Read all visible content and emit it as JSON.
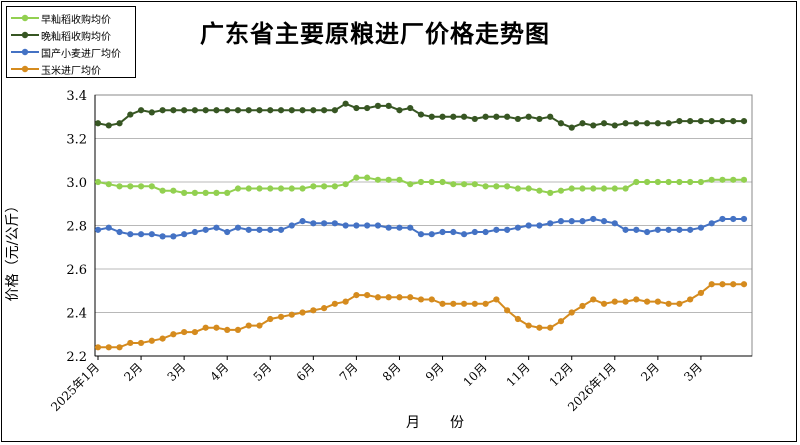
{
  "chart_data": {
    "type": "line",
    "title": "广东省主要原粮进厂价格走势图",
    "xlabel": "月　份",
    "ylabel": "价格（元/公斤）",
    "ylim": [
      2.2,
      3.4
    ],
    "yticks": [
      "2.2",
      "2.4",
      "2.6",
      "2.8",
      "3.0",
      "3.2",
      "3.4"
    ],
    "grid": true,
    "legend_position": "top-left",
    "x_tick_labels": [
      "2025年1月",
      "2月",
      "3月",
      "4月",
      "5月",
      "6月",
      "7月",
      "8月",
      "9月",
      "10月",
      "11月",
      "12月",
      "2026年1月",
      "2月",
      "3月"
    ],
    "points_per_month": 4,
    "series": [
      {
        "name": "早籼稻收购均价",
        "color": "#92D050",
        "values": [
          3.0,
          2.99,
          2.98,
          2.98,
          2.98,
          2.98,
          2.96,
          2.96,
          2.95,
          2.95,
          2.95,
          2.95,
          2.95,
          2.97,
          2.97,
          2.97,
          2.97,
          2.97,
          2.97,
          2.97,
          2.98,
          2.98,
          2.98,
          2.99,
          3.02,
          3.02,
          3.01,
          3.01,
          3.01,
          2.99,
          3.0,
          3.0,
          3.0,
          2.99,
          2.99,
          2.99,
          2.98,
          2.98,
          2.98,
          2.97,
          2.97,
          2.96,
          2.95,
          2.96,
          2.97,
          2.97,
          2.97,
          2.97,
          2.97,
          2.97,
          3.0,
          3.0,
          3.0,
          3.0,
          3.0,
          3.0,
          3.0,
          3.01,
          3.01,
          3.01,
          3.01
        ]
      },
      {
        "name": "晚籼稻收购均价",
        "color": "#375623",
        "values": [
          3.27,
          3.26,
          3.27,
          3.31,
          3.33,
          3.32,
          3.33,
          3.33,
          3.33,
          3.33,
          3.33,
          3.33,
          3.33,
          3.33,
          3.33,
          3.33,
          3.33,
          3.33,
          3.33,
          3.33,
          3.33,
          3.33,
          3.33,
          3.36,
          3.34,
          3.34,
          3.35,
          3.35,
          3.33,
          3.34,
          3.31,
          3.3,
          3.3,
          3.3,
          3.3,
          3.29,
          3.3,
          3.3,
          3.3,
          3.29,
          3.3,
          3.29,
          3.3,
          3.27,
          3.25,
          3.27,
          3.26,
          3.27,
          3.26,
          3.27,
          3.27,
          3.27,
          3.27,
          3.27,
          3.28,
          3.28,
          3.28,
          3.28,
          3.28,
          3.28,
          3.28
        ]
      },
      {
        "name": "国产小麦进厂均价",
        "color": "#4472C4",
        "values": [
          2.78,
          2.79,
          2.77,
          2.76,
          2.76,
          2.76,
          2.75,
          2.75,
          2.76,
          2.77,
          2.78,
          2.79,
          2.77,
          2.79,
          2.78,
          2.78,
          2.78,
          2.78,
          2.8,
          2.82,
          2.81,
          2.81,
          2.81,
          2.8,
          2.8,
          2.8,
          2.8,
          2.79,
          2.79,
          2.79,
          2.76,
          2.76,
          2.77,
          2.77,
          2.76,
          2.77,
          2.77,
          2.78,
          2.78,
          2.79,
          2.8,
          2.8,
          2.81,
          2.82,
          2.82,
          2.82,
          2.83,
          2.82,
          2.81,
          2.78,
          2.78,
          2.77,
          2.78,
          2.78,
          2.78,
          2.78,
          2.79,
          2.81,
          2.83,
          2.83,
          2.83
        ]
      },
      {
        "name": "玉米进厂均价",
        "color": "#D58B1E",
        "values": [
          2.24,
          2.24,
          2.24,
          2.26,
          2.26,
          2.27,
          2.28,
          2.3,
          2.31,
          2.31,
          2.33,
          2.33,
          2.32,
          2.32,
          2.34,
          2.34,
          2.37,
          2.38,
          2.39,
          2.4,
          2.41,
          2.42,
          2.44,
          2.45,
          2.48,
          2.48,
          2.47,
          2.47,
          2.47,
          2.47,
          2.46,
          2.46,
          2.44,
          2.44,
          2.44,
          2.44,
          2.44,
          2.46,
          2.41,
          2.37,
          2.34,
          2.33,
          2.33,
          2.36,
          2.4,
          2.43,
          2.46,
          2.44,
          2.45,
          2.45,
          2.46,
          2.45,
          2.45,
          2.44,
          2.44,
          2.46,
          2.49,
          2.53,
          2.53,
          2.53,
          2.53
        ]
      }
    ]
  }
}
